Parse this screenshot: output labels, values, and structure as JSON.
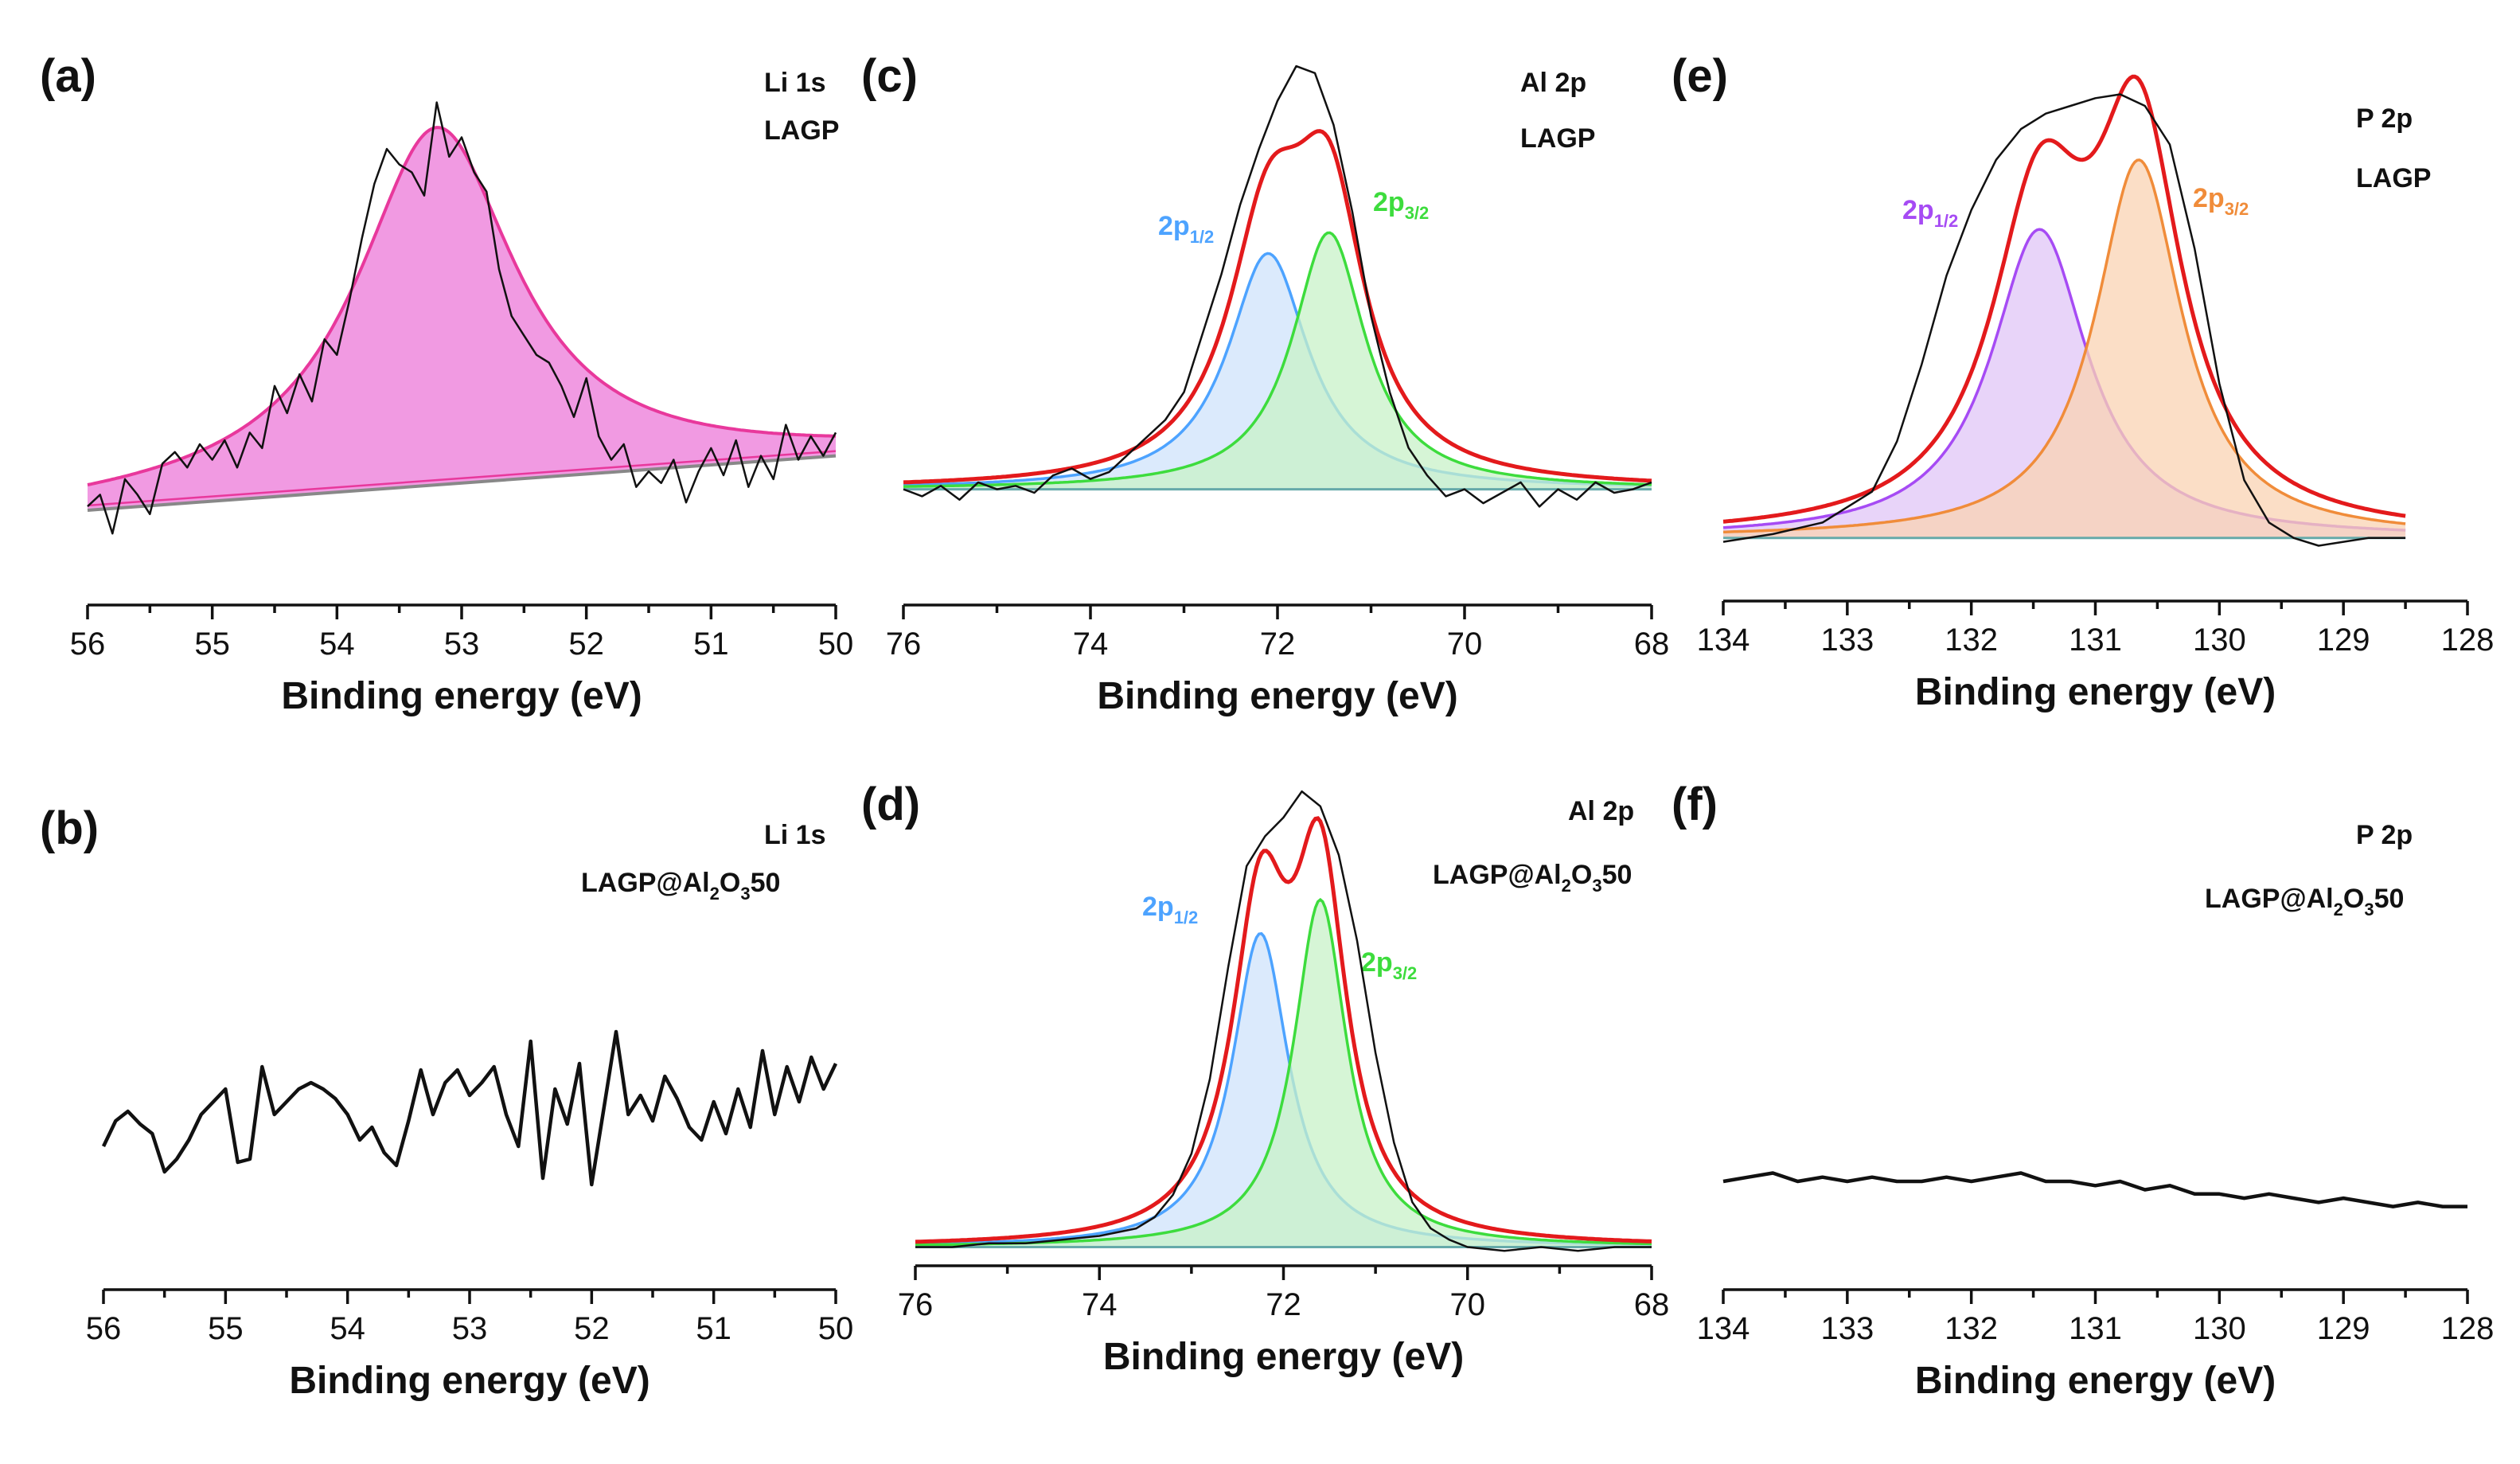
{
  "chart_data": [
    {
      "id": "a",
      "panel_label": "(a)",
      "type": "line",
      "title_lines": [
        "Li 1s",
        "LAGP"
      ],
      "xlabel": "Binding energy (eV)",
      "xlim": [
        56,
        50
      ],
      "ylim": [
        0,
        1.25
      ],
      "xticks": [
        56,
        55,
        54,
        53,
        52,
        51,
        50
      ],
      "baseline": {
        "x": [
          56,
          50
        ],
        "y": [
          0.08,
          0.22
        ]
      },
      "raw": {
        "x": [
          56,
          55.9,
          55.8,
          55.7,
          55.6,
          55.5,
          55.4,
          55.3,
          55.2,
          55.1,
          55.0,
          54.9,
          54.8,
          54.7,
          54.6,
          54.5,
          54.4,
          54.3,
          54.2,
          54.1,
          54.0,
          53.9,
          53.8,
          53.7,
          53.6,
          53.5,
          53.4,
          53.3,
          53.2,
          53.1,
          53.0,
          52.9,
          52.8,
          52.7,
          52.6,
          52.5,
          52.4,
          52.3,
          52.2,
          52.1,
          52.0,
          51.9,
          51.8,
          51.7,
          51.6,
          51.5,
          51.4,
          51.3,
          51.2,
          51.1,
          51.0,
          50.9,
          50.8,
          50.7,
          50.6,
          50.5,
          50.4,
          50.3,
          50.2,
          50.1,
          50.0
        ],
        "y": [
          0.09,
          0.12,
          0.02,
          0.16,
          0.12,
          0.07,
          0.2,
          0.23,
          0.19,
          0.25,
          0.21,
          0.26,
          0.19,
          0.28,
          0.24,
          0.4,
          0.33,
          0.43,
          0.36,
          0.52,
          0.48,
          0.62,
          0.78,
          0.92,
          1.01,
          0.97,
          0.95,
          0.89,
          1.13,
          0.99,
          1.04,
          0.95,
          0.9,
          0.7,
          0.58,
          0.53,
          0.48,
          0.46,
          0.4,
          0.32,
          0.42,
          0.27,
          0.21,
          0.25,
          0.14,
          0.18,
          0.15,
          0.21,
          0.1,
          0.18,
          0.24,
          0.17,
          0.26,
          0.14,
          0.22,
          0.16,
          0.3,
          0.21,
          0.27,
          0.22,
          0.28
        ]
      },
      "fit": {
        "center": 53.2,
        "amplitude": 0.92,
        "fwhm": 1.55,
        "color": "#e8389c",
        "fill": "#ee88dd"
      }
    },
    {
      "id": "b",
      "panel_label": "(b)",
      "type": "line",
      "title_lines": [
        "Li 1s",
        "LAGP@Al"
      ],
      "title_sub": "2",
      "title_mid": "O",
      "title_sub2": "3",
      "title_end": "50",
      "xlabel": "Binding energy (eV)",
      "xlim": [
        56,
        50
      ],
      "ylim": [
        -0.3,
        1.1
      ],
      "xticks": [
        56,
        55,
        54,
        53,
        52,
        51,
        50
      ],
      "raw": {
        "x": [
          56,
          55.9,
          55.8,
          55.7,
          55.6,
          55.5,
          55.4,
          55.3,
          55.2,
          55.1,
          55.0,
          54.9,
          54.8,
          54.7,
          54.6,
          54.5,
          54.4,
          54.3,
          54.2,
          54.1,
          54.0,
          53.9,
          53.8,
          53.7,
          53.6,
          53.5,
          53.4,
          53.3,
          53.2,
          53.1,
          53.0,
          52.9,
          52.8,
          52.7,
          52.6,
          52.5,
          52.4,
          52.3,
          52.2,
          52.1,
          52.0,
          51.9,
          51.8,
          51.7,
          51.6,
          51.5,
          51.4,
          51.3,
          51.2,
          51.1,
          51.0,
          50.9,
          50.8,
          50.7,
          50.6,
          50.5,
          50.4,
          50.3,
          50.2,
          50.1,
          50.0
        ],
        "y": [
          0.1,
          0.18,
          0.21,
          0.17,
          0.14,
          0.02,
          0.06,
          0.12,
          0.2,
          0.24,
          0.28,
          0.05,
          0.06,
          0.35,
          0.2,
          0.24,
          0.28,
          0.3,
          0.28,
          0.25,
          0.2,
          0.12,
          0.16,
          0.08,
          0.04,
          0.18,
          0.34,
          0.2,
          0.3,
          0.34,
          0.26,
          0.3,
          0.35,
          0.2,
          0.1,
          0.43,
          0.0,
          0.28,
          0.17,
          0.36,
          -0.02,
          0.22,
          0.46,
          0.2,
          0.26,
          0.18,
          0.32,
          0.25,
          0.16,
          0.12,
          0.24,
          0.14,
          0.28,
          0.16,
          0.4,
          0.2,
          0.35,
          0.24,
          0.38,
          0.28,
          0.36
        ]
      }
    },
    {
      "id": "c",
      "panel_label": "(c)",
      "type": "line",
      "title_lines": [
        "Al 2p",
        "LAGP"
      ],
      "xlabel": "Binding energy (eV)",
      "xlim": [
        76,
        68
      ],
      "ylim": [
        -0.15,
        1.25
      ],
      "xticks": [
        76,
        74,
        72,
        70,
        68
      ],
      "peaks": [
        {
          "label": "2p",
          "sub": "1/2",
          "center": 72.1,
          "amplitude": 0.68,
          "fwhm": 1.05,
          "color": "#4da3ff",
          "fill": "#cfe3fb"
        },
        {
          "label": "2p",
          "sub": "3/2",
          "center": 71.45,
          "amplitude": 0.74,
          "fwhm": 0.95,
          "color": "#3ddc3d",
          "fill": "#c8f2c8"
        }
      ],
      "envelope_color": "#e31a1c",
      "raw": {
        "x": [
          76,
          75.8,
          75.6,
          75.4,
          75.2,
          75.0,
          74.8,
          74.6,
          74.4,
          74.2,
          74.0,
          73.8,
          73.6,
          73.4,
          73.2,
          73.0,
          72.8,
          72.6,
          72.4,
          72.2,
          72.0,
          71.8,
          71.6,
          71.4,
          71.2,
          71.0,
          70.8,
          70.6,
          70.4,
          70.2,
          70.0,
          69.8,
          69.6,
          69.4,
          69.2,
          69.0,
          68.8,
          68.6,
          68.4,
          68.2,
          68.0
        ],
        "y": [
          0.0,
          -0.02,
          0.01,
          -0.03,
          0.02,
          0.0,
          0.01,
          -0.01,
          0.04,
          0.06,
          0.03,
          0.05,
          0.1,
          0.15,
          0.2,
          0.28,
          0.45,
          0.62,
          0.82,
          0.98,
          1.12,
          1.22,
          1.2,
          1.05,
          0.8,
          0.5,
          0.28,
          0.12,
          0.04,
          -0.02,
          0.0,
          -0.04,
          -0.01,
          0.02,
          -0.05,
          0.0,
          -0.03,
          0.02,
          -0.01,
          0.0,
          0.02
        ]
      }
    },
    {
      "id": "d",
      "panel_label": "(d)",
      "type": "line",
      "title_lines": [
        "Al 2p",
        "LAGP@Al"
      ],
      "title_sub": "2",
      "title_mid": "O",
      "title_sub2": "3",
      "title_end": "50",
      "xlabel": "Binding energy (eV)",
      "xlim": [
        76,
        68
      ],
      "ylim": [
        -0.05,
        1.25
      ],
      "xticks": [
        76,
        74,
        72,
        70,
        68
      ],
      "peaks": [
        {
          "label": "2p",
          "sub": "1/2",
          "center": 72.25,
          "amplitude": 0.84,
          "fwhm": 0.75,
          "color": "#4da3ff",
          "fill": "#cfe3fb"
        },
        {
          "label": "2p",
          "sub": "3/2",
          "center": 71.6,
          "amplitude": 0.93,
          "fwhm": 0.7,
          "color": "#3ddc3d",
          "fill": "#c8f2c8"
        }
      ],
      "envelope_color": "#e31a1c",
      "raw": {
        "x": [
          76,
          75.6,
          75.2,
          74.8,
          74.4,
          74.0,
          73.6,
          73.4,
          73.2,
          73.0,
          72.8,
          72.6,
          72.4,
          72.2,
          72.0,
          71.8,
          71.6,
          71.4,
          71.2,
          71.0,
          70.8,
          70.6,
          70.4,
          70.2,
          70.0,
          69.6,
          69.2,
          68.8,
          68.4,
          68.0
        ],
        "y": [
          0.0,
          0.0,
          0.01,
          0.01,
          0.02,
          0.03,
          0.05,
          0.08,
          0.14,
          0.25,
          0.45,
          0.75,
          1.02,
          1.1,
          1.15,
          1.22,
          1.18,
          1.05,
          0.82,
          0.52,
          0.28,
          0.12,
          0.05,
          0.02,
          0.0,
          -0.01,
          0.0,
          -0.01,
          0.0,
          0.0
        ]
      }
    },
    {
      "id": "e",
      "panel_label": "(e)",
      "type": "line",
      "title_lines": [
        "P 2p",
        "LAGP"
      ],
      "xlabel": "Binding energy (eV)",
      "xlim": [
        134,
        128
      ],
      "ylim": [
        -0.05,
        1.25
      ],
      "xticks": [
        134,
        133,
        132,
        131,
        130,
        129,
        128
      ],
      "data_range": [
        134,
        128.5
      ],
      "peaks": [
        {
          "label": "2p",
          "sub": "1/2",
          "center": 131.45,
          "amplitude": 0.8,
          "fwhm": 0.95,
          "color": "#a64bf4",
          "fill": "#e0c6f7"
        },
        {
          "label": "2p",
          "sub": "3/2",
          "center": 130.65,
          "amplitude": 0.98,
          "fwhm": 0.85,
          "color": "#f08c3a",
          "fill": "#f9d3b3"
        }
      ],
      "envelope_color": "#e31a1c",
      "raw": {
        "x": [
          134,
          133.6,
          133.2,
          132.8,
          132.6,
          132.4,
          132.2,
          132.0,
          131.8,
          131.6,
          131.4,
          131.2,
          131.0,
          130.8,
          130.6,
          130.4,
          130.2,
          130.0,
          129.8,
          129.6,
          129.4,
          129.2,
          129.0,
          128.8,
          128.5
        ],
        "y": [
          -0.01,
          0.01,
          0.04,
          0.12,
          0.25,
          0.45,
          0.68,
          0.85,
          0.98,
          1.06,
          1.1,
          1.12,
          1.14,
          1.15,
          1.12,
          1.02,
          0.75,
          0.4,
          0.15,
          0.04,
          0.0,
          -0.02,
          -0.01,
          0.0,
          0.0
        ]
      }
    },
    {
      "id": "f",
      "panel_label": "(f)",
      "type": "line",
      "title_lines": [
        "P 2p",
        "LAGP@Al"
      ],
      "title_sub": "2",
      "title_mid": "O",
      "title_sub2": "3",
      "title_end": "50",
      "xlabel": "Binding energy (eV)",
      "xlim": [
        134,
        128
      ],
      "ylim": [
        -0.1,
        1.0
      ],
      "xticks": [
        134,
        133,
        132,
        131,
        130,
        129,
        128
      ],
      "raw": {
        "x": [
          134,
          133.8,
          133.6,
          133.4,
          133.2,
          133.0,
          132.8,
          132.6,
          132.4,
          132.2,
          132.0,
          131.8,
          131.6,
          131.4,
          131.2,
          131.0,
          130.8,
          130.6,
          130.4,
          130.2,
          130.0,
          129.8,
          129.6,
          129.4,
          129.2,
          129.0,
          128.8,
          128.6,
          128.4,
          128.2,
          128.0
        ],
        "y": [
          0.12,
          0.13,
          0.14,
          0.12,
          0.13,
          0.12,
          0.13,
          0.12,
          0.12,
          0.13,
          0.12,
          0.13,
          0.14,
          0.12,
          0.12,
          0.11,
          0.12,
          0.1,
          0.11,
          0.09,
          0.09,
          0.08,
          0.09,
          0.08,
          0.07,
          0.08,
          0.07,
          0.06,
          0.07,
          0.06,
          0.06
        ]
      }
    }
  ]
}
